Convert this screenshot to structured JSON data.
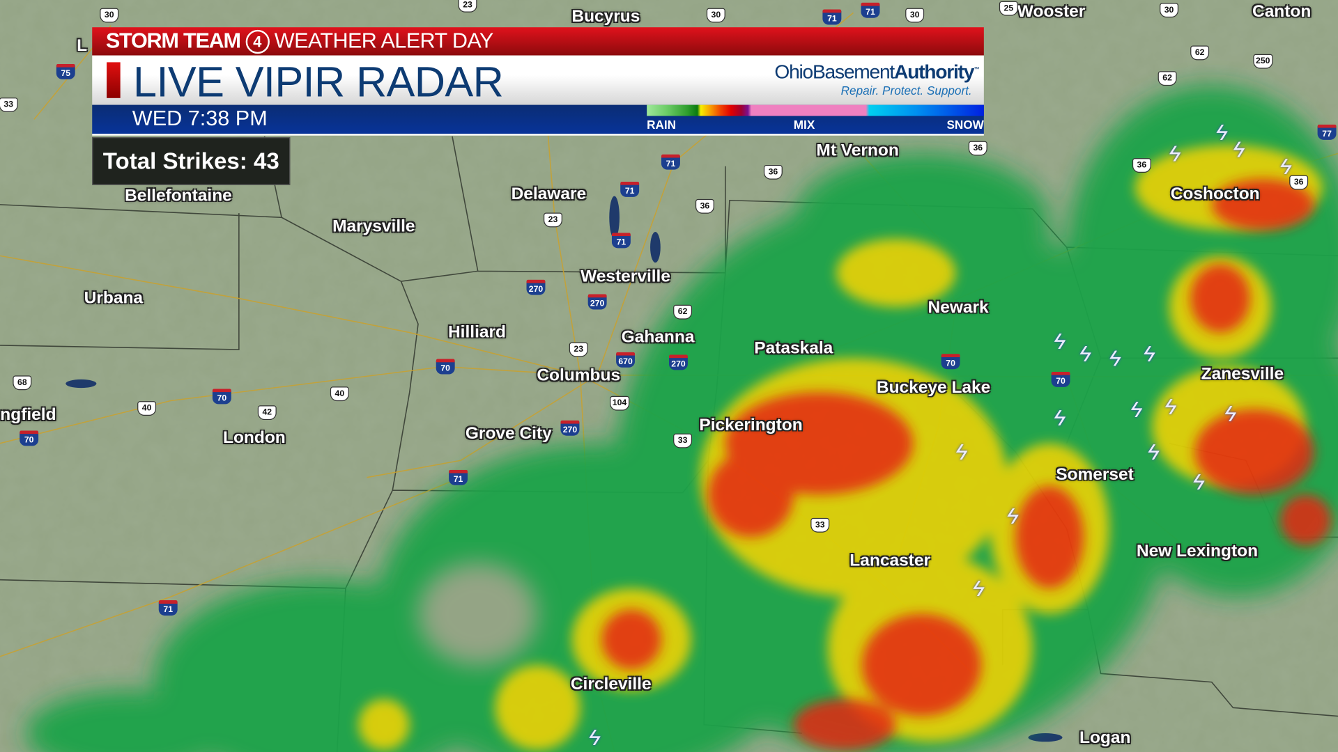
{
  "header": {
    "brand": "STORM TEAM",
    "channel_number": "4",
    "alert": "WEATHER ALERT DAY",
    "title": "LIVE VIPIR RADAR",
    "time": "WED 7:38 PM"
  },
  "sponsor": {
    "name_part1": "OhioBasement",
    "name_part2": "Authority",
    "trademark": "™",
    "tagline": "Repair. Protect. Support."
  },
  "legend": {
    "rain": "RAIN",
    "mix": "MIX",
    "snow": "SNOW"
  },
  "strikes": {
    "label": "Total Strikes:",
    "count": "43"
  },
  "cities": [
    "Bucyrus",
    "Wooster",
    "Canton",
    "Mt Vernon",
    "Coshocton",
    "Delaware",
    "Marysville",
    "Westerville",
    "Urbana",
    "Newark",
    "Hilliard",
    "Gahanna",
    "Pataskala",
    "Zanesville",
    "Columbus",
    "Buckeye Lake",
    "Pickerington",
    "ngfield",
    "London",
    "Grove City",
    "Somerset",
    "New Lexington",
    "Lancaster",
    "Circleville",
    "Logan",
    "Bellefontaine",
    "L"
  ],
  "shields": {
    "interstates": [
      "75",
      "71",
      "71",
      "71",
      "71",
      "71",
      "270",
      "270",
      "670",
      "270",
      "70",
      "70",
      "70",
      "70",
      "70",
      "71",
      "71",
      "77",
      "270"
    ],
    "us_routes": [
      "23",
      "30",
      "30",
      "30",
      "30",
      "25",
      "62",
      "62",
      "250",
      "36",
      "36",
      "36",
      "36",
      "36",
      "23",
      "23",
      "62",
      "40",
      "40",
      "42",
      "104",
      "33",
      "33",
      "68",
      "33"
    ]
  },
  "colors": {
    "alert_red": "#d0101a",
    "title_navy": "#0d3b73",
    "time_bar": "#0a2d74",
    "map_land": "#94a485"
  }
}
